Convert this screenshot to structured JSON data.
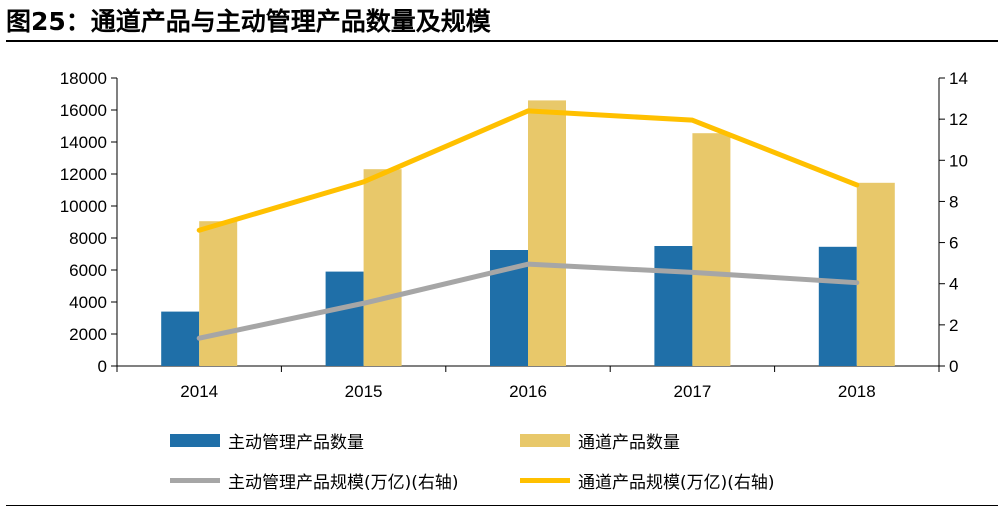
{
  "title": "图25：通道产品与主动管理产品数量及规模",
  "chart_data": {
    "type": "bar",
    "categories": [
      "2014",
      "2015",
      "2016",
      "2017",
      "2018"
    ],
    "left_axis": {
      "min": 0,
      "max": 18000,
      "step": 2000,
      "ticks": [
        "0",
        "2000",
        "4000",
        "6000",
        "8000",
        "10000",
        "12000",
        "14000",
        "16000",
        "18000"
      ]
    },
    "right_axis": {
      "min": 0,
      "max": 14,
      "step": 2,
      "ticks": [
        "0",
        "2",
        "4",
        "6",
        "8",
        "10",
        "12",
        "14"
      ]
    },
    "series": [
      {
        "name": "主动管理产品数量",
        "type": "bar",
        "axis": "left",
        "color": "#1F6FA8",
        "values": [
          3400,
          5900,
          7250,
          7500,
          7450
        ]
      },
      {
        "name": "通道产品数量",
        "type": "bar",
        "axis": "left",
        "color": "#E8C86A",
        "values": [
          9050,
          12300,
          16600,
          14550,
          11450
        ]
      },
      {
        "name": "主动管理产品规模(万亿)(右轴)",
        "type": "line",
        "axis": "right",
        "color": "#A6A6A6",
        "values": [
          1.35,
          3.05,
          4.95,
          4.55,
          4.05
        ]
      },
      {
        "name": "通道产品规模(万亿)(右轴)",
        "type": "line",
        "axis": "right",
        "color": "#FFC000",
        "values": [
          6.6,
          8.95,
          12.4,
          11.95,
          8.8
        ]
      }
    ],
    "legend_position": "bottom",
    "grid": false
  }
}
